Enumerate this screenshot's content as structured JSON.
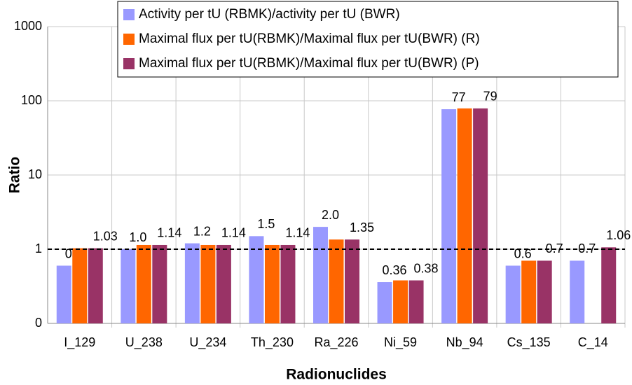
{
  "chart_data": {
    "type": "bar",
    "x_label": "Radionuclides",
    "y_label": "Ratio",
    "categories": [
      "I_129",
      "U_238",
      "U_234",
      "Th_230",
      "Ra_226",
      "Ni_59",
      "Nb_94",
      "Cs_135",
      "C_14"
    ],
    "series": [
      {
        "name": "Activity per tU (RBMK)/activity per tU (BWR)",
        "color": "#9999ff",
        "values": [
          0.6,
          1.0,
          1.2,
          1.5,
          2.0,
          0.36,
          77,
          0.6,
          0.7
        ],
        "value_labels": [
          "0.6",
          "1.0",
          "1.2",
          "1.5",
          "2.0",
          "0.36",
          "77",
          "0.6",
          "0.7"
        ]
      },
      {
        "name": "Maximal flux per tU(RBMK)/Maximal flux per tU(BWR) (R)",
        "color": "#ff6600",
        "values": [
          1.03,
          1.14,
          1.14,
          1.14,
          1.35,
          0.38,
          79,
          0.7,
          null
        ]
      },
      {
        "name": "Maximal flux per tU(RBMK)/Maximal flux per tU(BWR) (P)",
        "color": "#993366",
        "values": [
          1.03,
          1.14,
          1.14,
          1.14,
          1.35,
          0.38,
          79,
          0.7,
          1.06
        ],
        "value_labels": [
          "1.03",
          "1.14",
          "1.14",
          "1.14",
          "1.35",
          "0.38",
          "79",
          "0.7",
          "1.06"
        ]
      }
    ],
    "log_scale": true,
    "ylim": [
      0.1,
      1000
    ],
    "yticks": [
      {
        "value": 0.1,
        "label": "0"
      },
      1,
      10,
      100,
      1000
    ],
    "reference_line": 1,
    "grid": true,
    "legend": "top-right"
  }
}
